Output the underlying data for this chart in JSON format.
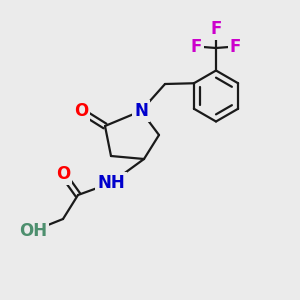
{
  "background_color": "#ebebeb",
  "bond_color": "#1a1a1a",
  "atom_colors": {
    "O": "#ff0000",
    "N": "#0000cc",
    "F": "#cc00cc",
    "H": "#4d8f6e",
    "C": "#1a1a1a"
  },
  "font_size_atoms": 12,
  "figsize": [
    3.0,
    3.0
  ],
  "dpi": 100,
  "xlim": [
    0,
    10
  ],
  "ylim": [
    0,
    10
  ]
}
